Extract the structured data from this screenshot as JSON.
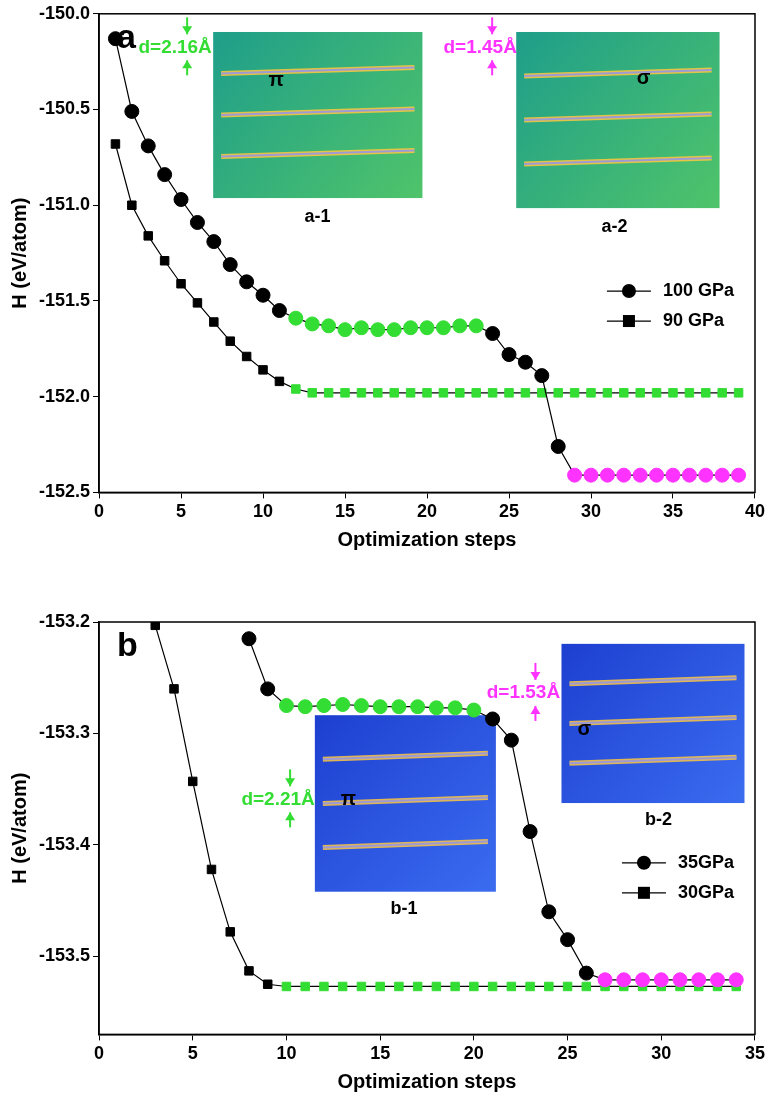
{
  "chart_data": [
    {
      "type": "line",
      "title": "a",
      "x_label": "Optimization steps",
      "y_label": "H (eV/atom)",
      "xlim": [
        0,
        40
      ],
      "xticks": [
        0,
        5,
        10,
        15,
        20,
        25,
        30,
        35,
        40
      ],
      "ylim": [
        -152.5,
        -150.0
      ],
      "yticks": [
        {
          "value": -152.5,
          "label": "-152.5"
        },
        {
          "value": -152.0,
          "label": "-152.0"
        },
        -151.5,
        {
          "value": -151.0,
          "label": "-151.0"
        },
        -150.5,
        {
          "value": -150.0,
          "label": "-150.0"
        }
      ],
      "grid": false,
      "legend": "right",
      "series": [
        {
          "name": "100 GPa",
          "marker": "circle",
          "color": "#000000",
          "x": [
            1,
            2,
            3,
            4,
            5,
            6,
            7,
            8,
            9,
            10,
            11,
            12,
            13,
            14,
            15,
            16,
            17,
            18,
            19,
            20,
            21,
            22,
            23,
            24,
            25,
            26,
            27,
            28,
            29,
            30,
            31,
            32,
            33,
            34,
            35,
            36,
            37,
            38,
            39
          ],
          "values": [
            -150.13,
            -150.51,
            -150.69,
            -150.84,
            -150.97,
            -151.09,
            -151.19,
            -151.31,
            -151.4,
            -151.47,
            -151.55,
            -151.59,
            -151.62,
            -151.63,
            -151.65,
            -151.64,
            -151.65,
            -151.65,
            -151.64,
            -151.64,
            -151.64,
            -151.63,
            -151.63,
            -151.67,
            -151.78,
            -151.82,
            -151.89,
            -152.26,
            -152.41,
            -152.41,
            -152.41,
            -152.41,
            -152.41,
            -152.41,
            -152.41,
            -152.41,
            -152.41,
            -152.41,
            -152.41
          ],
          "colors": [
            "#000000",
            "#000000",
            "#000000",
            "#000000",
            "#000000",
            "#000000",
            "#000000",
            "#000000",
            "#000000",
            "#000000",
            "#000000",
            "#33dd33",
            "#33dd33",
            "#33dd33",
            "#33dd33",
            "#33dd33",
            "#33dd33",
            "#33dd33",
            "#33dd33",
            "#33dd33",
            "#33dd33",
            "#33dd33",
            "#33dd33",
            "#000000",
            "#000000",
            "#000000",
            "#000000",
            "#000000",
            "#ff33ff",
            "#ff33ff",
            "#ff33ff",
            "#ff33ff",
            "#ff33ff",
            "#ff33ff",
            "#ff33ff",
            "#ff33ff",
            "#ff33ff",
            "#ff33ff",
            "#ff33ff"
          ]
        },
        {
          "name": "90 GPa",
          "marker": "square",
          "color": "#000000",
          "x": [
            1,
            2,
            3,
            4,
            5,
            6,
            7,
            8,
            9,
            10,
            11,
            12,
            13,
            14,
            15,
            16,
            17,
            18,
            19,
            20,
            21,
            22,
            23,
            24,
            25,
            26,
            27,
            28,
            29,
            30,
            31,
            32,
            33,
            34,
            35,
            36,
            37,
            38,
            39
          ],
          "values": [
            -150.68,
            -151.0,
            -151.16,
            -151.29,
            -151.41,
            -151.51,
            -151.61,
            -151.71,
            -151.79,
            -151.86,
            -151.92,
            -151.96,
            -151.98,
            -151.98,
            -151.98,
            -151.98,
            -151.98,
            -151.98,
            -151.98,
            -151.98,
            -151.98,
            -151.98,
            -151.98,
            -151.98,
            -151.98,
            -151.98,
            -151.98,
            -151.98,
            -151.98,
            -151.98,
            -151.98,
            -151.98,
            -151.98,
            -151.98,
            -151.98,
            -151.98,
            -151.98,
            -151.98,
            -151.98
          ],
          "colors": [
            "#000000",
            "#000000",
            "#000000",
            "#000000",
            "#000000",
            "#000000",
            "#000000",
            "#000000",
            "#000000",
            "#000000",
            "#000000",
            "#33dd33",
            "#33dd33",
            "#33dd33",
            "#33dd33",
            "#33dd33",
            "#33dd33",
            "#33dd33",
            "#33dd33",
            "#33dd33",
            "#33dd33",
            "#33dd33",
            "#33dd33",
            "#33dd33",
            "#33dd33",
            "#33dd33",
            "#33dd33",
            "#33dd33",
            "#33dd33",
            "#33dd33",
            "#33dd33",
            "#33dd33",
            "#33dd33",
            "#33dd33",
            "#33dd33",
            "#33dd33",
            "#33dd33",
            "#33dd33",
            "#33dd33"
          ]
        }
      ],
      "annotations": [
        {
          "caption": "a-1",
          "bond": "π",
          "distance": "d=2.16Å",
          "color": "#33dd33"
        },
        {
          "caption": "a-2",
          "bond": "σ",
          "distance": "d=1.45Å",
          "color": "#ff33ff"
        }
      ]
    },
    {
      "type": "line",
      "title": "b",
      "x_label": "Optimization steps",
      "y_label": "H (eV/atom)",
      "xlim": [
        0,
        35
      ],
      "xticks": [
        0,
        5,
        10,
        15,
        20,
        25,
        30,
        35
      ],
      "ylim": [
        -153.57,
        -153.2
      ],
      "yticks": [
        -153.5,
        -153.4,
        -153.3,
        -153.2
      ],
      "grid": false,
      "legend": "right",
      "series": [
        {
          "name": "35GPa",
          "marker": "circle",
          "color": "#000000",
          "x": [
            8,
            9,
            10,
            11,
            12,
            13,
            14,
            15,
            16,
            17,
            18,
            19,
            20,
            21,
            22,
            23,
            24,
            25,
            26,
            27,
            28,
            29,
            30,
            31,
            32,
            33,
            34
          ],
          "values": [
            -153.215,
            -153.26,
            -153.275,
            -153.276,
            -153.275,
            -153.274,
            -153.275,
            -153.276,
            -153.276,
            -153.276,
            -153.277,
            -153.277,
            -153.279,
            -153.287,
            -153.306,
            -153.388,
            -153.46,
            -153.485,
            -153.515,
            -153.521,
            -153.521,
            -153.521,
            -153.521,
            -153.521,
            -153.521,
            -153.521,
            -153.521
          ],
          "colors": [
            "#000000",
            "#000000",
            "#33dd33",
            "#33dd33",
            "#33dd33",
            "#33dd33",
            "#33dd33",
            "#33dd33",
            "#33dd33",
            "#33dd33",
            "#33dd33",
            "#33dd33",
            "#33dd33",
            "#000000",
            "#000000",
            "#000000",
            "#000000",
            "#000000",
            "#000000",
            "#ff33ff",
            "#ff33ff",
            "#ff33ff",
            "#ff33ff",
            "#ff33ff",
            "#ff33ff",
            "#ff33ff",
            "#ff33ff"
          ]
        },
        {
          "name": "30GPa",
          "marker": "square",
          "color": "#000000",
          "x": [
            3,
            4,
            5,
            6,
            7,
            8,
            9,
            10,
            11,
            12,
            13,
            14,
            15,
            16,
            17,
            18,
            19,
            20,
            21,
            22,
            23,
            24,
            25,
            26,
            27,
            28,
            29,
            30,
            31,
            32,
            33,
            34
          ],
          "values": [
            -153.203,
            -153.26,
            -153.343,
            -153.422,
            -153.478,
            -153.513,
            -153.525,
            -153.527,
            -153.527,
            -153.527,
            -153.527,
            -153.527,
            -153.527,
            -153.527,
            -153.527,
            -153.527,
            -153.527,
            -153.527,
            -153.527,
            -153.527,
            -153.527,
            -153.527,
            -153.527,
            -153.527,
            -153.527,
            -153.527,
            -153.527,
            -153.527,
            -153.527,
            -153.527,
            -153.527,
            -153.527
          ],
          "colors": [
            "#000000",
            "#000000",
            "#000000",
            "#000000",
            "#000000",
            "#000000",
            "#000000",
            "#33dd33",
            "#33dd33",
            "#33dd33",
            "#33dd33",
            "#33dd33",
            "#33dd33",
            "#33dd33",
            "#33dd33",
            "#33dd33",
            "#33dd33",
            "#33dd33",
            "#33dd33",
            "#33dd33",
            "#33dd33",
            "#33dd33",
            "#33dd33",
            "#33dd33",
            "#33dd33",
            "#33dd33",
            "#33dd33",
            "#33dd33",
            "#33dd33",
            "#33dd33",
            "#33dd33",
            "#33dd33"
          ]
        }
      ],
      "annotations": [
        {
          "caption": "b-1",
          "bond": "π",
          "distance": "d=2.21Å",
          "color": "#33dd33"
        },
        {
          "caption": "b-2",
          "bond": "σ",
          "distance": "d=1.53Å",
          "color": "#ff33ff"
        }
      ]
    }
  ]
}
